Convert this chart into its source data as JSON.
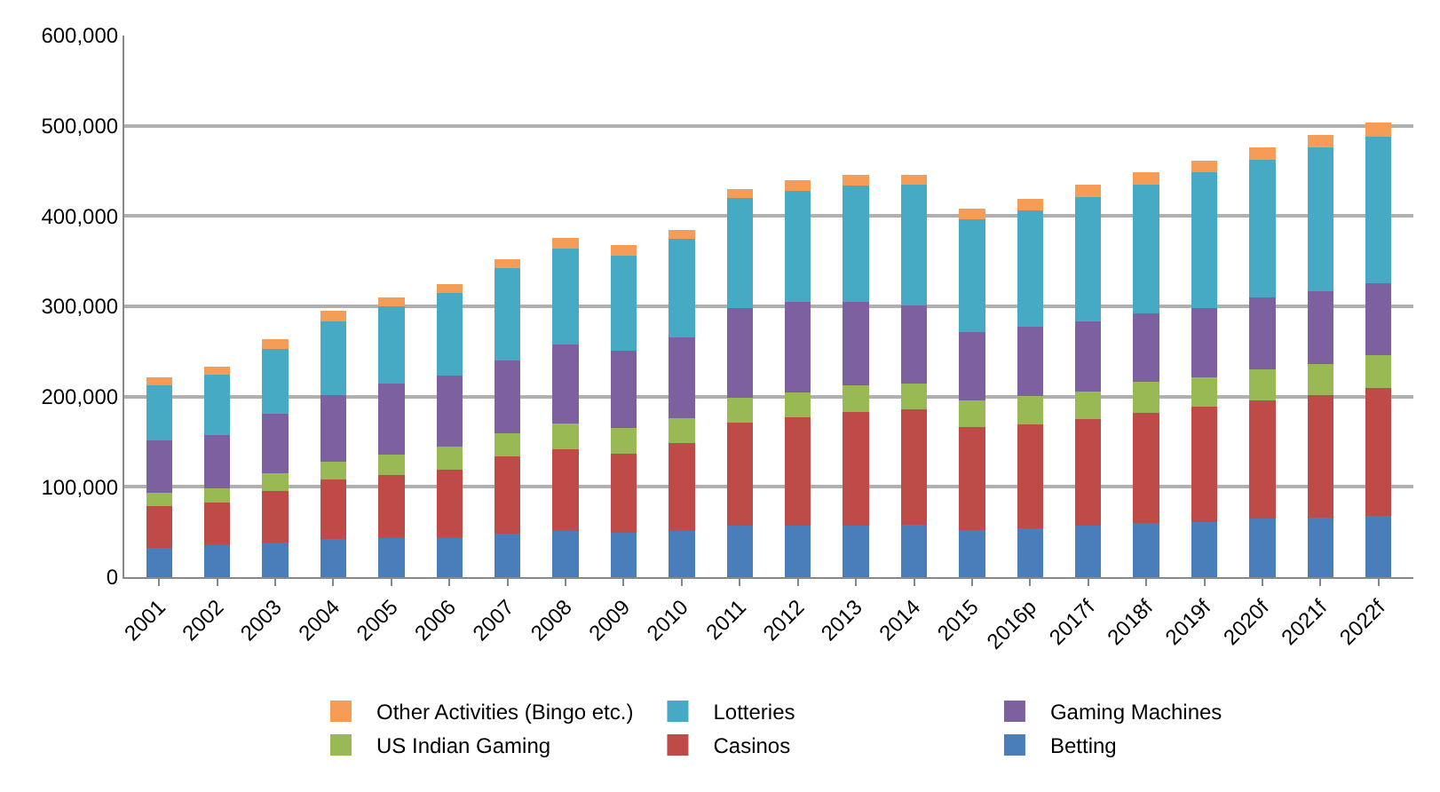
{
  "chart_data": {
    "type": "bar",
    "stacked": true,
    "categories": [
      "2001",
      "2002",
      "2003",
      "2004",
      "2005",
      "2006",
      "2007",
      "2008",
      "2009",
      "2010",
      "2011",
      "2012",
      "2013",
      "2014",
      "2015",
      "2016p",
      "2017f",
      "2018f",
      "2019f",
      "2020f",
      "2021f",
      "2022f"
    ],
    "series": [
      {
        "name": "Betting",
        "color": "#4a7ebb",
        "values": [
          32000,
          35000,
          38000,
          42000,
          43000,
          43000,
          48000,
          51000,
          49000,
          51000,
          57000,
          57000,
          57000,
          58000,
          52000,
          54000,
          57000,
          60000,
          61000,
          65000,
          66000,
          68000
        ]
      },
      {
        "name": "Casinos",
        "color": "#be4b48",
        "values": [
          47000,
          48000,
          57000,
          66000,
          70000,
          76000,
          86000,
          91000,
          88000,
          98000,
          114000,
          120000,
          126000,
          128000,
          114000,
          115000,
          118000,
          122000,
          128000,
          131000,
          136000,
          142000
        ]
      },
      {
        "name": "US Indian Gaming",
        "color": "#98b954",
        "values": [
          14000,
          15000,
          20000,
          20000,
          23000,
          26000,
          25000,
          28000,
          28000,
          27000,
          28000,
          28000,
          29000,
          28000,
          30000,
          32000,
          31000,
          34000,
          32000,
          34000,
          34000,
          36000
        ]
      },
      {
        "name": "Gaming Machines",
        "color": "#7d60a0",
        "values": [
          58000,
          59000,
          66000,
          74000,
          78000,
          78000,
          81000,
          88000,
          86000,
          90000,
          99000,
          100000,
          93000,
          87000,
          75000,
          76000,
          77000,
          76000,
          77000,
          80000,
          81000,
          80000
        ]
      },
      {
        "name": "Lotteries",
        "color": "#46aac5",
        "values": [
          61000,
          67000,
          72000,
          81000,
          86000,
          92000,
          102000,
          106000,
          105000,
          109000,
          122000,
          123000,
          129000,
          134000,
          125000,
          129000,
          138000,
          143000,
          151000,
          152000,
          159000,
          162000
        ]
      },
      {
        "name": "Other Activities (Bingo etc.)",
        "color": "#f59d56",
        "values": [
          9000,
          9000,
          11000,
          12000,
          10000,
          10000,
          10000,
          12000,
          12000,
          10000,
          10000,
          12000,
          12000,
          11000,
          12000,
          13000,
          14000,
          14000,
          12000,
          14000,
          14000,
          16000
        ]
      }
    ],
    "ylim": [
      0,
      600000
    ],
    "yticks": [
      {
        "value": 0,
        "label": "0"
      },
      {
        "value": 100000,
        "label": "100,000"
      },
      {
        "value": 200000,
        "label": "200,000"
      },
      {
        "value": 300000,
        "label": "300,000"
      },
      {
        "value": 400000,
        "label": "400,000"
      },
      {
        "value": 500000,
        "label": "500,000"
      },
      {
        "value": 600000,
        "label": "600,000"
      }
    ],
    "grid": "y",
    "legend": "bottom"
  }
}
